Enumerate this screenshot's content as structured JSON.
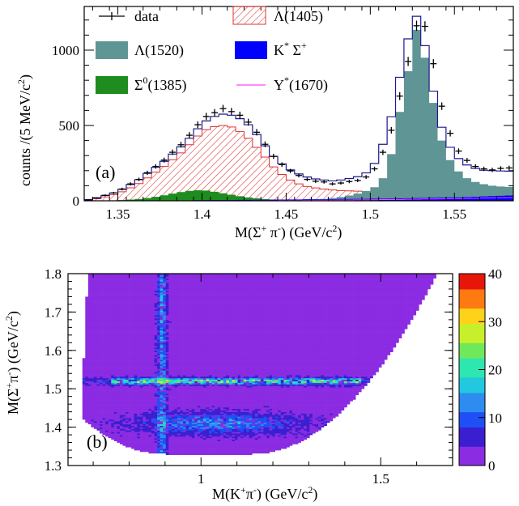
{
  "chart_data": [
    {
      "type": "histogram",
      "panel_label": "(a)",
      "xlabel": {
        "main": "M(Σ",
        "sup1": "+",
        "mid": " π",
        "sup2": "-",
        "end": ") (GeV/c",
        "sup3": "2",
        "close": ")"
      },
      "ylabel": {
        "main": "counts /(5 MeV/c",
        "sup": "2",
        "close": ")"
      },
      "xlim": [
        1.33,
        1.585
      ],
      "ylim": [
        0,
        1290
      ],
      "xticks": [
        1.35,
        1.4,
        1.45,
        1.5,
        1.55
      ],
      "xtick_labels": [
        "1.35",
        "1.4",
        "1.45",
        "1.5",
        "1.55"
      ],
      "yticks": [
        0,
        500,
        1000
      ],
      "ytick_labels": [
        "0",
        "500",
        "1000"
      ],
      "bin_width": 0.005,
      "bin_start": 1.33,
      "legend": [
        {
          "key": "data",
          "label": "data",
          "style": "marker"
        },
        {
          "key": "lambda1405",
          "label": "Λ(1405)",
          "style": "hatch",
          "color": "#e03030"
        },
        {
          "key": "lambda1520",
          "label": "Λ(1520)",
          "style": "fill",
          "color": "#5f9595"
        },
        {
          "key": "kstar",
          "label": "K",
          "label_sup": "*",
          "label_post": " Σ",
          "label_sup2": "+",
          "style": "fill",
          "color": "#0000ff"
        },
        {
          "key": "sigma1385",
          "label": "Σ",
          "label_sup": "0",
          "label_post": "(1385)",
          "style": "fill",
          "color": "#1e8c1e"
        },
        {
          "key": "y1670",
          "label": "Y",
          "label_sup": "*",
          "label_post": "(1670)",
          "style": "line",
          "color": "#ff44ff"
        }
      ],
      "series": [
        {
          "name": "data",
          "values": [
            5,
            18,
            36,
            52,
            78,
            112,
            142,
            186,
            228,
            270,
            322,
            372,
            435,
            505,
            560,
            585,
            612,
            592,
            568,
            522,
            455,
            375,
            295,
            240,
            198,
            168,
            142,
            130,
            125,
            112,
            118,
            128,
            135,
            158,
            212,
            322,
            468,
            695,
            925,
            1162,
            1158,
            910,
            628,
            448,
            330,
            268,
            228,
            212,
            205,
            215,
            218
          ]
        },
        {
          "name": "total_fit",
          "values": [
            8,
            20,
            36,
            52,
            76,
            108,
            140,
            182,
            222,
            262,
            310,
            358,
            415,
            478,
            530,
            560,
            575,
            568,
            545,
            505,
            440,
            365,
            295,
            245,
            205,
            178,
            158,
            145,
            138,
            132,
            138,
            148,
            160,
            185,
            248,
            375,
            558,
            820,
            1075,
            1225,
            1030,
            728,
            488,
            355,
            280,
            238,
            215,
            203,
            200,
            198,
            197
          ]
        },
        {
          "name": "Λ(1405)",
          "values": [
            5,
            14,
            26,
            40,
            60,
            86,
            114,
            152,
            190,
            228,
            272,
            318,
            372,
            430,
            472,
            492,
            500,
            490,
            460,
            415,
            355,
            290,
            225,
            175,
            138,
            112,
            95,
            85,
            78,
            72,
            68,
            66,
            64,
            62,
            60,
            59,
            58,
            57,
            56,
            55,
            54,
            53,
            52,
            50,
            48,
            46,
            45,
            44,
            43,
            42,
            41
          ]
        },
        {
          "name": "Λ(1520)",
          "values": [
            0,
            0,
            0,
            0,
            0,
            0,
            0,
            0,
            0,
            0,
            0,
            0,
            0,
            0,
            0,
            0,
            0,
            0,
            0,
            0,
            0,
            0,
            0,
            0,
            0,
            0,
            5,
            8,
            12,
            18,
            25,
            35,
            48,
            65,
            90,
            150,
            310,
            590,
            860,
            1135,
            950,
            650,
            400,
            270,
            195,
            150,
            125,
            110,
            100,
            95,
            92
          ]
        },
        {
          "name": "K* Σ+",
          "values": [
            0,
            0,
            0,
            0,
            1,
            1,
            1,
            2,
            2,
            2,
            3,
            3,
            3,
            4,
            4,
            5,
            5,
            5,
            6,
            6,
            7,
            7,
            8,
            8,
            9,
            9,
            10,
            10,
            11,
            11,
            12,
            12,
            13,
            13,
            14,
            14,
            15,
            16,
            17,
            18,
            19,
            20,
            21,
            22,
            23,
            25,
            27,
            29,
            31,
            33,
            35
          ]
        },
        {
          "name": "Σ0(1385)",
          "values": [
            0,
            1,
            2,
            3,
            5,
            8,
            12,
            18,
            26,
            36,
            48,
            58,
            66,
            70,
            68,
            60,
            50,
            40,
            30,
            22,
            16,
            11,
            7,
            5,
            3,
            2,
            1,
            1,
            0,
            0,
            0,
            0,
            0,
            0,
            0,
            0,
            0,
            0,
            0,
            0,
            0,
            0,
            0,
            0,
            0,
            0,
            0,
            0,
            0,
            0,
            0
          ]
        },
        {
          "name": "Y*(1670)",
          "values": [
            0,
            0,
            0,
            0,
            0,
            0,
            0,
            0,
            0,
            0,
            0,
            0,
            0,
            0,
            0,
            0,
            0,
            0,
            0,
            0,
            1,
            1,
            1,
            2,
            2,
            2,
            3,
            3,
            4,
            4,
            5,
            5,
            6,
            6,
            7,
            8,
            8,
            9,
            10,
            11,
            12,
            12,
            13,
            14,
            15,
            16,
            17,
            18,
            19,
            20,
            21
          ]
        }
      ]
    },
    {
      "type": "heatmap",
      "panel_label": "(b)",
      "xlabel": {
        "main": "M(K",
        "sup1": "+",
        "mid": "π",
        "sup2": "-",
        "end": ") (GeV/c",
        "sup3": "2",
        "close": ")"
      },
      "ylabel": {
        "main": "M(Σ",
        "sup1": "+",
        "mid": "π",
        "sup2": "-",
        "end": ") (GeV/c",
        "sup3": "2",
        "close": ")"
      },
      "xlim": [
        0.63,
        1.7
      ],
      "ylim": [
        1.3,
        1.8
      ],
      "xticks": [
        1.0,
        1.5
      ],
      "xtick_labels": [
        "1",
        "1.5"
      ],
      "yticks": [
        1.3,
        1.4,
        1.5,
        1.6,
        1.7,
        1.8
      ],
      "ytick_labels": [
        "1.3",
        "1.4",
        "1.5",
        "1.6",
        "1.7",
        "1.8"
      ],
      "zlim": [
        0,
        40
      ],
      "zticks": [
        0,
        10,
        20,
        30,
        40
      ],
      "ztick_labels": [
        "0",
        "10",
        "20",
        "30",
        "40"
      ],
      "colorscale": [
        "#ffffff",
        "#8b2be2",
        "#3a1fd0",
        "#1f4ff5",
        "#2e8cf0",
        "#22c8e0",
        "#2ee6b0",
        "#6fe85c",
        "#c8f02a",
        "#ffd21a",
        "#ff7a10",
        "#e8160a"
      ],
      "structures": {
        "kstar_band_mass": 0.892,
        "lambda1520_band_mass": 1.52,
        "lambda1405_region_mass": 1.41
      }
    }
  ]
}
